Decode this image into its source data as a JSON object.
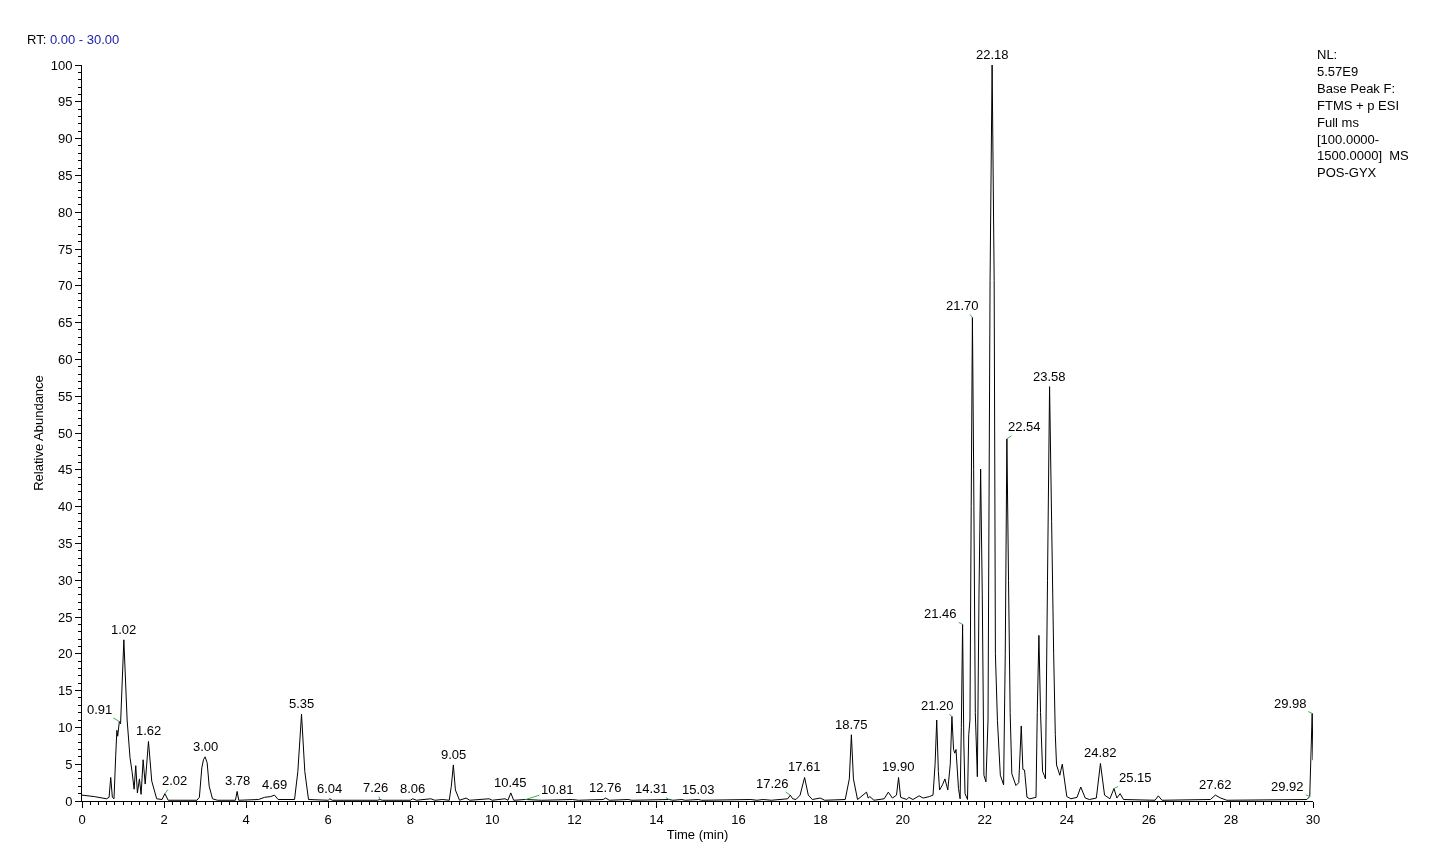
{
  "chart_data": {
    "type": "line",
    "title": "RT: 0.00 - 30.00",
    "xlabel": "Time (min)",
    "ylabel": "Relative Abundance",
    "color": "#000000",
    "grid": false,
    "xlim": [
      0,
      30
    ],
    "xticks": [
      0,
      2,
      4,
      6,
      8,
      10,
      12,
      14,
      16,
      18,
      20,
      22,
      24,
      26,
      28,
      30
    ],
    "ylim": [
      0,
      100
    ],
    "yticks": [
      0,
      5,
      10,
      15,
      20,
      25,
      30,
      35,
      40,
      45,
      50,
      55,
      60,
      65,
      70,
      75,
      80,
      85,
      90,
      95,
      100
    ],
    "x": [
      0,
      0.3,
      0.6,
      0.66,
      0.7,
      0.74,
      0.78,
      0.82,
      0.85,
      0.87,
      0.91,
      0.94,
      1.02,
      1.1,
      1.17,
      1.22,
      1.27,
      1.31,
      1.35,
      1.4,
      1.44,
      1.49,
      1.54,
      1.62,
      1.7,
      1.82,
      1.95,
      2.02,
      2.1,
      2.8,
      2.86,
      2.92,
      2.96,
      3.0,
      3.05,
      3.1,
      3.18,
      3.3,
      3.74,
      3.78,
      3.82,
      4.3,
      4.45,
      4.6,
      4.69,
      4.78,
      5.18,
      5.26,
      5.35,
      5.43,
      5.52,
      6.0,
      6.04,
      6.1,
      7.2,
      7.26,
      7.32,
      8.0,
      8.06,
      8.15,
      8.5,
      8.6,
      8.79,
      8.95,
      9.0,
      9.05,
      9.1,
      9.2,
      9.36,
      9.45,
      9.92,
      10.0,
      10.31,
      10.38,
      10.45,
      10.52,
      10.81,
      11.2,
      11.95,
      12.1,
      12.7,
      12.76,
      12.85,
      13.31,
      13.4,
      14.31,
      14.4,
      14.62,
      14.7,
      15.03,
      15.1,
      16.3,
      16.45,
      16.6,
      16.8,
      17.2,
      17.26,
      17.32,
      17.4,
      17.5,
      17.61,
      17.7,
      17.8,
      17.99,
      18.1,
      18.6,
      18.7,
      18.75,
      18.8,
      18.9,
      19.12,
      19.16,
      19.2,
      19.3,
      19.55,
      19.65,
      19.75,
      19.85,
      19.9,
      19.95,
      20.1,
      20.15,
      20.25,
      20.4,
      20.5,
      20.65,
      20.74,
      20.79,
      20.83,
      20.87,
      20.9,
      20.97,
      21.03,
      21.1,
      21.16,
      21.2,
      21.24,
      21.27,
      21.3,
      21.36,
      21.4,
      21.43,
      21.46,
      21.49,
      21.52,
      21.58,
      21.61,
      21.64,
      21.67,
      21.7,
      21.73,
      21.77,
      21.82,
      21.86,
      21.9,
      21.94,
      21.98,
      22.03,
      22.08,
      22.13,
      22.18,
      22.23,
      22.26,
      22.31,
      22.38,
      22.46,
      22.5,
      22.54,
      22.58,
      22.62,
      22.66,
      22.76,
      22.83,
      22.89,
      22.93,
      22.97,
      23.03,
      23.1,
      23.25,
      23.28,
      23.32,
      23.36,
      23.41,
      23.45,
      23.48,
      23.53,
      23.58,
      23.63,
      23.68,
      23.72,
      23.75,
      23.83,
      23.89,
      24.0,
      24.1,
      24.25,
      24.34,
      24.45,
      24.55,
      24.72,
      24.82,
      24.92,
      25.05,
      25.15,
      25.22,
      25.3,
      25.38,
      26.15,
      26.23,
      26.32,
      27.5,
      27.62,
      27.75,
      27.9,
      29.85,
      29.92,
      29.98,
      30.0
    ],
    "values": [
      0.8,
      0.6,
      0.3,
      0.5,
      3.2,
      0.5,
      0.3,
      6.0,
      9.6,
      8.8,
      10.8,
      10.5,
      21.9,
      11.0,
      5.9,
      4.0,
      1.6,
      4.8,
      1.1,
      3.0,
      0.9,
      5.6,
      2.3,
      8.1,
      2.7,
      0.3,
      0.2,
      1.0,
      0.1,
      0.1,
      0.5,
      4.5,
      5.6,
      6.0,
      5.2,
      2.0,
      0.3,
      0.1,
      0.1,
      1.3,
      0.1,
      0.2,
      0.5,
      0.6,
      0.8,
      0.2,
      0.2,
      4.0,
      11.8,
      4.0,
      0.2,
      0.1,
      0.3,
      0.1,
      0.1,
      0.2,
      0.1,
      0.1,
      0.3,
      0.1,
      0.3,
      0.1,
      0.2,
      0.1,
      2.0,
      4.9,
      1.5,
      0.1,
      0.4,
      0.1,
      0.3,
      0.1,
      0.3,
      0.1,
      1.1,
      0.1,
      0.2,
      0.1,
      0.2,
      0.1,
      0.2,
      0.4,
      0.1,
      0.2,
      0.1,
      0.2,
      0.1,
      0.2,
      0.1,
      0.2,
      0.1,
      0.2,
      0.1,
      0.2,
      0.1,
      0.3,
      0.8,
      0.3,
      0.2,
      0.8,
      3.2,
      0.8,
      0.2,
      0.4,
      0.1,
      0.2,
      3.0,
      9.0,
      3.0,
      0.2,
      1.2,
      0.4,
      0.6,
      0.1,
      0.3,
      1.2,
      0.4,
      0.8,
      3.2,
      0.5,
      0.2,
      0.5,
      0.2,
      0.7,
      0.4,
      0.6,
      0.8,
      5.0,
      11.0,
      4.0,
      1.5,
      2.2,
      3.0,
      1.5,
      5.0,
      11.5,
      7.0,
      6.5,
      7.0,
      1.7,
      0.3,
      10.0,
      24.0,
      8.0,
      1.0,
      0.2,
      9.0,
      11.0,
      40.0,
      65.7,
      45.0,
      12.0,
      3.3,
      28.0,
      45.1,
      28.0,
      3.5,
      2.6,
      11.0,
      70.7,
      100,
      70.7,
      20.0,
      10.9,
      3.5,
      2.2,
      20.0,
      49.2,
      30.0,
      12.0,
      3.7,
      2.1,
      2.5,
      10.2,
      4.3,
      4.2,
      0.5,
      0.3,
      0.5,
      12.0,
      22.5,
      12.0,
      4.0,
      3.5,
      3.0,
      30.0,
      56.3,
      38.0,
      20.0,
      9.0,
      4.9,
      3.5,
      5.0,
      0.6,
      0.3,
      0.5,
      1.9,
      0.4,
      0.2,
      0.4,
      5.1,
      0.8,
      0.3,
      1.7,
      0.4,
      1.0,
      0.2,
      0.1,
      0.7,
      0.1,
      0.2,
      0.8,
      0.4,
      0.1,
      0.2,
      0.6,
      11.9,
      5.6
    ],
    "annotations": [
      {
        "text": "0.91",
        "x": 0.91,
        "y": 10.8
      },
      {
        "text": "1.02",
        "x": 1.02,
        "y": 21.9
      },
      {
        "text": "1.62",
        "x": 1.62,
        "y": 8.1
      },
      {
        "text": "2.02",
        "x": 2.02,
        "y": 1.0
      },
      {
        "text": "3.00",
        "x": 3.0,
        "y": 6.0
      },
      {
        "text": "3.78",
        "x": 3.78,
        "y": 1.3
      },
      {
        "text": "4.69",
        "x": 4.69,
        "y": 0.8
      },
      {
        "text": "5.35",
        "x": 5.35,
        "y": 11.8
      },
      {
        "text": "6.04",
        "x": 6.04,
        "y": 0.3
      },
      {
        "text": "7.26",
        "x": 7.26,
        "y": 0.2
      },
      {
        "text": "8.06",
        "x": 8.06,
        "y": 0.3
      },
      {
        "text": "9.05",
        "x": 9.05,
        "y": 4.9
      },
      {
        "text": "10.45",
        "x": 10.45,
        "y": 1.1
      },
      {
        "text": "10.81",
        "x": 10.81,
        "y": 0.2
      },
      {
        "text": "12.76",
        "x": 12.76,
        "y": 0.4
      },
      {
        "text": "14.31",
        "x": 14.31,
        "y": 0.2
      },
      {
        "text": "15.03",
        "x": 15.03,
        "y": 0.2
      },
      {
        "text": "17.26",
        "x": 17.26,
        "y": 0.8
      },
      {
        "text": "17.61",
        "x": 17.61,
        "y": 3.2
      },
      {
        "text": "18.75",
        "x": 18.75,
        "y": 9.0
      },
      {
        "text": "19.90",
        "x": 19.9,
        "y": 3.2
      },
      {
        "text": "21.20",
        "x": 21.2,
        "y": 11.5
      },
      {
        "text": "21.46",
        "x": 21.46,
        "y": 24.0
      },
      {
        "text": "21.70",
        "x": 21.7,
        "y": 65.7
      },
      {
        "text": "22.18",
        "x": 22.18,
        "y": 100
      },
      {
        "text": "22.54",
        "x": 22.54,
        "y": 49.2
      },
      {
        "text": "23.58",
        "x": 23.58,
        "y": 56.3
      },
      {
        "text": "24.82",
        "x": 24.82,
        "y": 5.1
      },
      {
        "text": "25.15",
        "x": 25.15,
        "y": 1.7
      },
      {
        "text": "27.62",
        "x": 27.62,
        "y": 0.8
      },
      {
        "text": "29.92",
        "x": 29.92,
        "y": 0.6
      },
      {
        "text": "29.98",
        "x": 29.98,
        "y": 11.9
      },
      "NL:\n5.57E9\nBase Peak F:\nFTMS + p ESI\nFull ms\n[100.0000-\n1500.0000]  MS\nPOS-GYX"
    ]
  }
}
